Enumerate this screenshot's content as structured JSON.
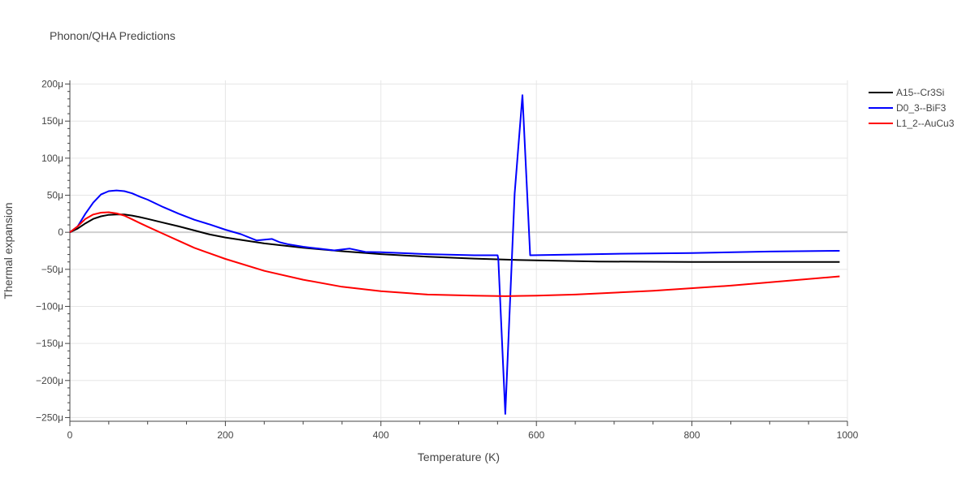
{
  "chart_data": {
    "type": "line",
    "title": "Phonon/QHA Predictions",
    "xlabel": "Temperature (K)",
    "ylabel": "Thermal expansion",
    "xlim": [
      0,
      1000
    ],
    "ylim": [
      -0.000255,
      0.000205
    ],
    "x_ticks": [
      0,
      200,
      400,
      600,
      800,
      1000
    ],
    "x_tick_labels": [
      "0",
      "200",
      "400",
      "600",
      "800",
      "1000"
    ],
    "y_ticks": [
      0.0002,
      0.00015,
      0.0001,
      5e-05,
      0,
      -5e-05,
      -0.0001,
      -0.00015,
      -0.0002,
      -0.00025
    ],
    "y_tick_labels": [
      "200μ",
      "150μ",
      "100μ",
      "50μ",
      "0",
      "−50μ",
      "−100μ",
      "−150μ",
      "−200μ",
      "−250μ"
    ],
    "grid": true,
    "legend_position": "top-right",
    "series": [
      {
        "name": "A15--Cr3Si",
        "color": "#000000",
        "x": [
          0,
          10,
          20,
          30,
          40,
          50,
          60,
          70,
          80,
          90,
          100,
          120,
          140,
          160,
          180,
          200,
          250,
          300,
          350,
          400,
          460,
          520,
          580,
          680,
          800,
          900,
          990
        ],
        "y": [
          0,
          5e-06,
          1.2e-05,
          1.8e-05,
          2.15e-05,
          2.35e-05,
          2.4e-05,
          2.4e-05,
          2.25e-05,
          2.05e-05,
          1.8e-05,
          1.3e-05,
          8e-06,
          2.5e-06,
          -3e-06,
          -7e-06,
          -1.5e-05,
          -2.1e-05,
          -2.55e-05,
          -2.95e-05,
          -3.3e-05,
          -3.55e-05,
          -3.75e-05,
          -3.95e-05,
          -4e-05,
          -4e-05,
          -4e-05
        ]
      },
      {
        "name": "D0_3--BiF3",
        "color": "#0000ff",
        "x": [
          0,
          10,
          20,
          30,
          40,
          50,
          60,
          70,
          80,
          90,
          100,
          120,
          140,
          160,
          180,
          200,
          220,
          240,
          260,
          270,
          280,
          300,
          320,
          340,
          360,
          380,
          400,
          460,
          520,
          550,
          551,
          560,
          572,
          582,
          592,
          700,
          800,
          900,
          990
        ],
        "y": [
          0,
          8e-06,
          2.5e-05,
          4e-05,
          5.1e-05,
          5.55e-05,
          5.65e-05,
          5.55e-05,
          5.25e-05,
          4.8e-05,
          4.4e-05,
          3.4e-05,
          2.5e-05,
          1.7e-05,
          1.05e-05,
          3.5e-06,
          -2.5e-06,
          -1.1e-05,
          -9e-06,
          -1.35e-05,
          -1.6e-05,
          -1.95e-05,
          -2.2e-05,
          -2.45e-05,
          -2.2e-05,
          -2.65e-05,
          -2.7e-05,
          -2.95e-05,
          -3.1e-05,
          -3.1e-05,
          -3.6e-05,
          -0.000245,
          5.2e-05,
          0.000185,
          -3.1e-05,
          -2.9e-05,
          -2.8e-05,
          -2.6e-05,
          -2.5e-05
        ]
      },
      {
        "name": "L1_2--AuCu3",
        "color": "#ff0000",
        "x": [
          0,
          10,
          20,
          30,
          40,
          50,
          60,
          70,
          80,
          90,
          100,
          120,
          140,
          160,
          180,
          200,
          250,
          300,
          350,
          400,
          460,
          520,
          560,
          600,
          650,
          750,
          850,
          990
        ],
        "y": [
          0,
          8e-06,
          1.8e-05,
          2.4e-05,
          2.65e-05,
          2.7e-05,
          2.55e-05,
          2.25e-05,
          1.75e-05,
          1.25e-05,
          7.5e-06,
          -2e-06,
          -1.15e-05,
          -2.1e-05,
          -2.85e-05,
          -3.6e-05,
          -5.2e-05,
          -6.4e-05,
          -7.35e-05,
          -7.95e-05,
          -8.4e-05,
          -8.55e-05,
          -8.62e-05,
          -8.55e-05,
          -8.4e-05,
          -7.9e-05,
          -7.2e-05,
          -5.95e-05
        ]
      }
    ]
  }
}
